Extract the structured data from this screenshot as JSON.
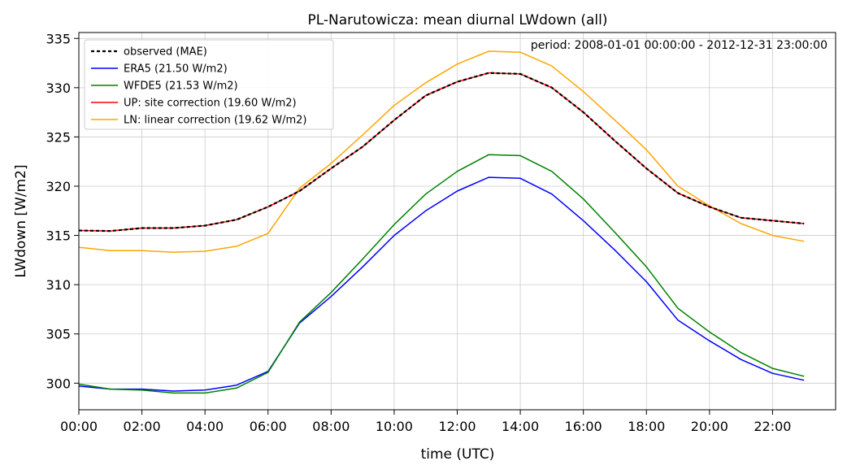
{
  "chart_data": {
    "type": "line",
    "title": "PL-Narutowicza: mean diurnal LWdown (all)",
    "xlabel": "time (UTC)",
    "ylabel": "LWdown [W/m2]",
    "annotation": "period: 2008-01-01 00:00:00 - 2012-12-31 23:00:00",
    "x": [
      0,
      1,
      2,
      3,
      4,
      5,
      6,
      7,
      8,
      9,
      10,
      11,
      12,
      13,
      14,
      15,
      16,
      17,
      18,
      19,
      20,
      21,
      22,
      23
    ],
    "x_tick_values": [
      0,
      2,
      4,
      6,
      8,
      10,
      12,
      14,
      16,
      18,
      20,
      22
    ],
    "x_tick_labels": [
      "00:00",
      "02:00",
      "04:00",
      "06:00",
      "08:00",
      "10:00",
      "12:00",
      "14:00",
      "16:00",
      "18:00",
      "20:00",
      "22:00"
    ],
    "xlim": [
      0,
      24
    ],
    "y_ticks": [
      300,
      305,
      310,
      315,
      320,
      325,
      330,
      335
    ],
    "ylim": [
      297.3,
      335.6
    ],
    "grid": true,
    "legend_position": "top-left",
    "series": [
      {
        "name": "observed (MAE)",
        "color": "#000000",
        "dashed": true,
        "values": [
          315.5,
          315.45,
          315.75,
          315.75,
          316.0,
          316.6,
          317.9,
          319.5,
          321.8,
          324.0,
          326.7,
          329.2,
          330.6,
          331.5,
          331.4,
          330.0,
          327.5,
          324.6,
          321.8,
          319.3,
          317.9,
          316.8,
          316.5,
          316.2
        ]
      },
      {
        "name": "ERA5 (21.50 W/m2)",
        "color": "#0000ff",
        "dashed": false,
        "values": [
          299.7,
          299.4,
          299.4,
          299.2,
          299.3,
          299.8,
          301.2,
          306.1,
          308.8,
          311.8,
          315.0,
          317.5,
          319.5,
          320.9,
          320.8,
          319.2,
          316.5,
          313.5,
          310.3,
          306.4,
          304.3,
          302.4,
          301.0,
          300.3
        ]
      },
      {
        "name": "WFDE5 (21.53 W/m2)",
        "color": "#008000",
        "dashed": false,
        "values": [
          299.9,
          299.4,
          299.3,
          299.0,
          299.0,
          299.5,
          301.1,
          306.2,
          309.2,
          312.6,
          316.1,
          319.2,
          321.5,
          323.2,
          323.1,
          321.5,
          318.7,
          315.3,
          311.8,
          307.6,
          305.2,
          303.1,
          301.5,
          300.7
        ]
      },
      {
        "name": "UP: site correction (19.60 W/m2)",
        "color": "#ff0000",
        "dashed": false,
        "values": [
          315.5,
          315.45,
          315.75,
          315.75,
          316.0,
          316.6,
          317.9,
          319.5,
          321.8,
          324.0,
          326.7,
          329.2,
          330.6,
          331.5,
          331.4,
          330.0,
          327.5,
          324.6,
          321.8,
          319.3,
          317.9,
          316.8,
          316.5,
          316.2
        ]
      },
      {
        "name": "LN: linear correction (19.62 W/m2)",
        "color": "#ffa500",
        "dashed": false,
        "values": [
          313.8,
          313.45,
          313.45,
          313.3,
          313.4,
          313.9,
          315.2,
          319.8,
          322.3,
          325.2,
          328.2,
          330.5,
          332.4,
          333.7,
          333.6,
          332.2,
          329.6,
          326.7,
          323.7,
          320.0,
          318.0,
          316.2,
          315.0,
          314.4
        ]
      }
    ]
  }
}
